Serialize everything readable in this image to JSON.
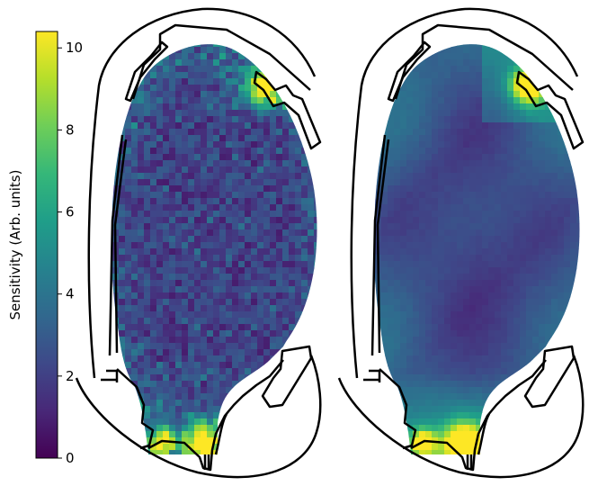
{
  "chart_data": {
    "type": "heatmap",
    "colormap": "viridis",
    "colormap_stops": [
      "#440154",
      "#482878",
      "#3e4989",
      "#31688e",
      "#26828e",
      "#1f9e89",
      "#35b779",
      "#6ece58",
      "#b5de2b",
      "#fde725"
    ],
    "colorbar": {
      "label": "Sensitivity (Arb. units)",
      "range": [
        0,
        10.4
      ],
      "ticks": [
        0,
        2,
        4,
        6,
        8,
        10
      ],
      "tick_labels": [
        "0",
        "2",
        "4",
        "6",
        "8",
        "10"
      ]
    },
    "panels": [
      {
        "name": "left",
        "pattern": "noisy",
        "description_values": "mostly 0.5-3 in core, hot spots ~10 near upper-right x-point and bottom divertor"
      },
      {
        "name": "right",
        "pattern": "smooth",
        "description_values": "mostly 1-3 in core, hot spots ~10 near upper-right x-point and bottom divertor"
      }
    ],
    "grid_on": false,
    "legend": "colorbar-left"
  }
}
